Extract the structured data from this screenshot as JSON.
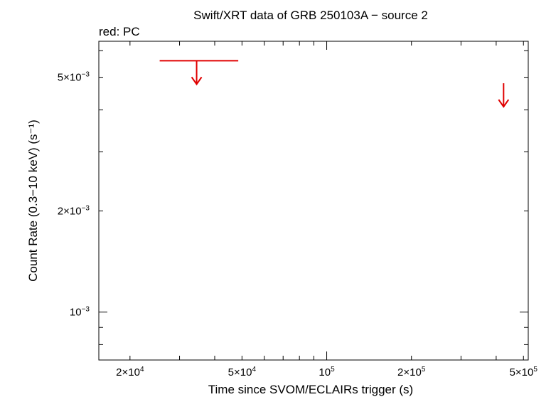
{
  "chart_data": {
    "type": "scatter",
    "title": "Swift/XRT data of GRB 250103A − source 2",
    "subtitle": "red: PC",
    "xlabel": "Time since SVOM/ECLAIRs trigger (s)",
    "ylabel": "Count Rate (0.3−10 keV) (s⁻¹)",
    "x_scale": "log",
    "y_scale": "log",
    "xlim": [
      15500,
      520000
    ],
    "ylim": [
      0.00072,
      0.0064
    ],
    "x_ticks": [
      {
        "value": 20000,
        "mant": "2×10",
        "exp": "4"
      },
      {
        "value": 50000,
        "mant": "5×10",
        "exp": "4"
      },
      {
        "value": 100000,
        "mant": "10",
        "exp": "5"
      },
      {
        "value": 200000,
        "mant": "2×10",
        "exp": "5"
      },
      {
        "value": 500000,
        "mant": "5×10",
        "exp": "5"
      }
    ],
    "y_ticks": [
      {
        "value": 0.001,
        "mant": "10",
        "exp": "−3"
      },
      {
        "value": 0.002,
        "mant": "2×10",
        "exp": "−3"
      },
      {
        "value": 0.005,
        "mant": "5×10",
        "exp": "−3"
      }
    ],
    "series": [
      {
        "mode": "PC",
        "color": "#e00000",
        "upper_limits": [
          {
            "x": 34500,
            "x_lo": 25500,
            "x_hi": 48500,
            "y": 0.0056
          },
          {
            "x": 425000,
            "x_lo": 425000,
            "x_hi": 425000,
            "y": 0.0048
          }
        ]
      }
    ]
  }
}
